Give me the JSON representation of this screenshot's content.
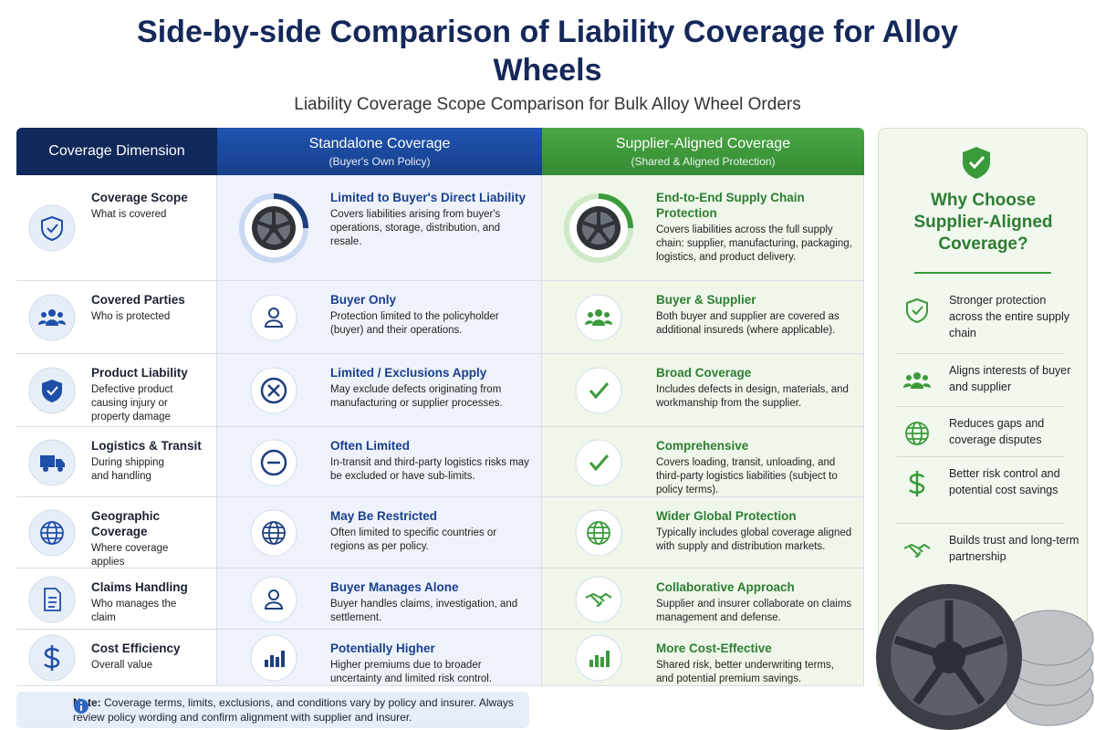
{
  "header": {
    "title": "Side-by-side Comparison of Liability Coverage for Alloy Wheels",
    "subtitle": "Liability Coverage Scope Comparison for Bulk Alloy Wheel Orders"
  },
  "table": {
    "columns": [
      {
        "title": "Coverage Dimension"
      },
      {
        "title": "Standalone Coverage",
        "subtitle": "(Buyer's Own Policy)"
      },
      {
        "title": "Supplier-Aligned Coverage",
        "subtitle": "(Shared & Aligned Protection)"
      }
    ],
    "rows": [
      [
        {
          "title": "Coverage Scope",
          "text": "What is covered"
        },
        {
          "title": "Limited to Buyer's Direct Liability",
          "text": "Covers liabilities arising from buyer's operations, storage, distribution, and resale."
        },
        {
          "title": "End-to-End Supply Chain Protection",
          "text": "Covers liabilities across the full supply chain: supplier, manufacturing, packaging, logistics, and product delivery."
        }
      ],
      [
        {
          "title": "Covered Parties",
          "text": "Who is protected"
        },
        {
          "title": "Buyer Only",
          "text": "Protection limited to the policyholder (buyer) and their operations."
        },
        {
          "title": "Buyer & Supplier",
          "text": "Both buyer and supplier are covered as additional insureds (where applicable)."
        }
      ],
      [
        {
          "title": "Product Liability",
          "text": "Defective product causing injury or property damage"
        },
        {
          "title": "Limited / Exclusions Apply",
          "text": "May exclude defects originating from manufacturing or supplier processes."
        },
        {
          "title": "Broad Coverage",
          "text": "Includes defects in design, materials, and workmanship from the supplier."
        }
      ],
      [
        {
          "title": "Logistics & Transit",
          "text": "During shipping and handling"
        },
        {
          "title": "Often Limited",
          "text": "In-transit and third-party logistics risks may be excluded or have sub-limits."
        },
        {
          "title": "Comprehensive",
          "text": "Covers loading, transit, unloading, and third-party logistics liabilities (subject to policy terms)."
        }
      ],
      [
        {
          "title": "Geographic Coverage",
          "text": "Where coverage applies"
        },
        {
          "title": "May Be Restricted",
          "text": "Often limited to specific countries or regions as per policy."
        },
        {
          "title": "Wider Global Protection",
          "text": "Typically includes global coverage aligned with supply and distribution markets."
        }
      ],
      [
        {
          "title": "Claims Handling",
          "text": "Who manages the claim"
        },
        {
          "title": "Buyer Manages Alone",
          "text": "Buyer handles claims, investigation, and settlement."
        },
        {
          "title": "Collaborative Approach",
          "text": "Supplier and insurer collaborate on claims management and defense."
        }
      ],
      [
        {
          "title": "Cost Efficiency",
          "text": "Overall value"
        },
        {
          "title": "Potentially Higher",
          "text": "Higher premiums due to broader uncertainty and limited risk control."
        },
        {
          "title": "More Cost-Effective",
          "text": "Shared risk, better underwriting terms, and potential premium savings."
        }
      ]
    ]
  },
  "sidebar": {
    "title": "Why Choose Supplier-Aligned Coverage?",
    "items": [
      "Stronger protection across the entire supply chain",
      "Aligns interests of buyer and supplier",
      "Reduces gaps and coverage disputes",
      "Better risk control and potential cost savings",
      "Builds trust and long-term partnership"
    ]
  },
  "note": {
    "label": "Note:",
    "text": "Coverage terms, limits, exclusions, and conditions vary by policy and insurer. Always review policy wording and confirm alignment with supplier and insurer."
  }
}
